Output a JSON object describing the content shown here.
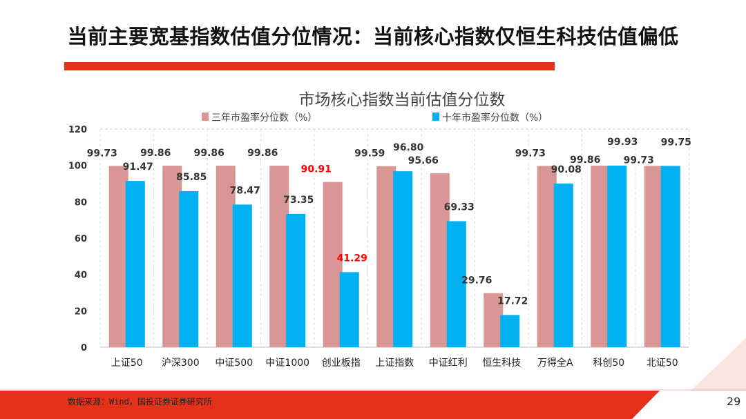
{
  "slide": {
    "title": "当前主要宽基指数估值分位情况：当前核心指数仅恒生科技估值偏低",
    "source": "数据来源：Wind，国投证券证券研究所",
    "page_number": "29",
    "accent": "#e5311a"
  },
  "chart_data": {
    "type": "bar",
    "title": "市场核心指数当前估值分位数",
    "categories": [
      "上证50",
      "沪深300",
      "中证500",
      "中证1000",
      "创业板指",
      "上证指数",
      "中证红利",
      "恒生科技",
      "万得全A",
      "科创50",
      "北证50"
    ],
    "series": [
      {
        "name": "三年市盈率分位数（%）",
        "color": "#d99694",
        "values": [
          99.73,
          99.86,
          99.86,
          99.86,
          90.91,
          99.59,
          95.66,
          29.76,
          99.73,
          99.86,
          99.73
        ]
      },
      {
        "name": "十年市盈率分位数（%）",
        "color": "#00b0f0",
        "values": [
          91.47,
          85.85,
          78.47,
          73.35,
          41.29,
          96.8,
          69.33,
          17.72,
          90.08,
          99.93,
          99.75
        ]
      }
    ],
    "highlighted_labels": {
      "category": "创业板指",
      "color": "#ff0000"
    },
    "yticks": [
      "0",
      "20",
      "40",
      "60",
      "80",
      "100",
      "120"
    ],
    "ylim": [
      0,
      120
    ],
    "grid": true,
    "legend": "top"
  }
}
